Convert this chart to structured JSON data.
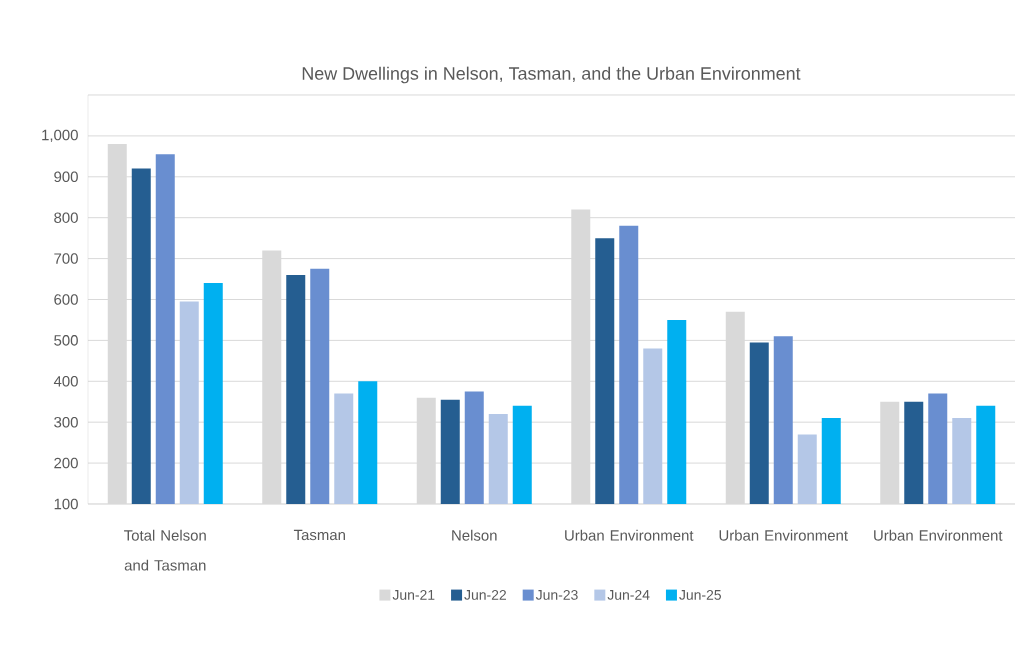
{
  "chart_data": {
    "type": "bar",
    "title": "New Dwellings in Nelson, Tasman, and the Urban Environment",
    "categories": [
      "Total Nelson and Tasman",
      "Tasman",
      "Nelson",
      "Urban Environment",
      "Urban Environment",
      "Urban Environment"
    ],
    "series": [
      {
        "name": "Jun-21",
        "color": "#d9d9d9",
        "values": [
          980,
          720,
          360,
          820,
          570,
          350
        ]
      },
      {
        "name": "Jun-22",
        "color": "#255e91",
        "values": [
          920,
          660,
          355,
          750,
          495,
          350
        ]
      },
      {
        "name": "Jun-23",
        "color": "#698ed0",
        "values": [
          955,
          675,
          375,
          780,
          510,
          370
        ]
      },
      {
        "name": "Jun-24",
        "color": "#b4c7e7",
        "values": [
          595,
          370,
          320,
          480,
          270,
          310
        ]
      },
      {
        "name": "Jun-25",
        "color": "#00b0f0",
        "values": [
          640,
          400,
          340,
          550,
          310,
          340
        ]
      }
    ],
    "ylim": [
      100,
      1100
    ],
    "yticks": [
      100,
      200,
      300,
      400,
      500,
      600,
      700,
      800,
      900,
      {
        "value": 1000,
        "label": "1,000"
      },
      {
        "value": 1100,
        "label": null
      }
    ],
    "grid": "y",
    "legend": "bottom"
  }
}
